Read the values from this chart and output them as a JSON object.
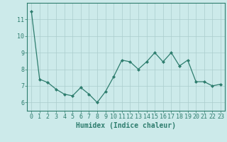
{
  "x": [
    0,
    1,
    2,
    3,
    4,
    5,
    6,
    7,
    8,
    9,
    10,
    11,
    12,
    13,
    14,
    15,
    16,
    17,
    18,
    19,
    20,
    21,
    22,
    23
  ],
  "y": [
    11.5,
    7.4,
    7.2,
    6.8,
    6.5,
    6.4,
    6.9,
    6.5,
    6.0,
    6.65,
    7.55,
    8.55,
    8.45,
    8.0,
    8.45,
    9.0,
    8.45,
    9.0,
    8.2,
    8.55,
    7.25,
    7.25,
    7.0,
    7.1
  ],
  "line_color": "#2e7d6e",
  "marker": "D",
  "marker_size": 2.0,
  "bg_color": "#cceaea",
  "grid_color": "#aacccc",
  "xlabel": "Humidex (Indice chaleur)",
  "ylim": [
    5.5,
    12.0
  ],
  "xlim": [
    -0.5,
    23.5
  ],
  "yticks": [
    6,
    7,
    8,
    9,
    10,
    11
  ],
  "xticks": [
    0,
    1,
    2,
    3,
    4,
    5,
    6,
    7,
    8,
    9,
    10,
    11,
    12,
    13,
    14,
    15,
    16,
    17,
    18,
    19,
    20,
    21,
    22,
    23
  ],
  "tick_color": "#2e7d6e",
  "label_color": "#2e7d6e",
  "xlabel_fontsize": 7,
  "tick_fontsize": 6,
  "linewidth": 0.9
}
